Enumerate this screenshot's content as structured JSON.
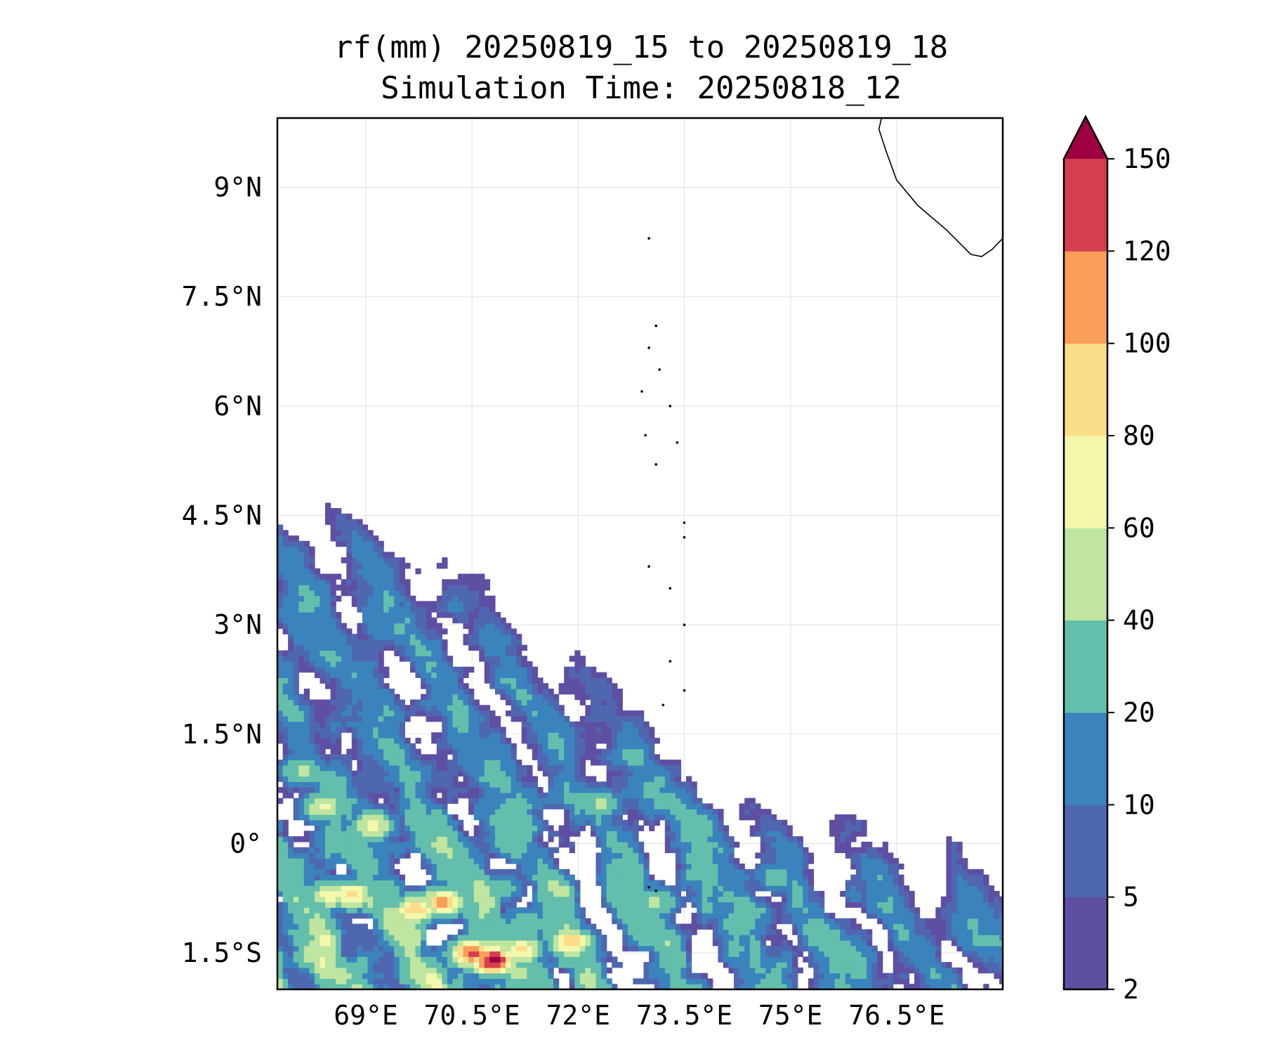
{
  "title": {
    "line1": "rf(mm) 20250819_15 to 20250819_18",
    "line2": "Simulation Time: 20250818_12"
  },
  "map": {
    "lon_range": [
      67.75,
      78.0
    ],
    "lat_range": [
      -2.0,
      9.95
    ],
    "gridlines": true,
    "x_ticks": [
      {
        "value": 69.0,
        "label": "69°E"
      },
      {
        "value": 70.5,
        "label": "70.5°E"
      },
      {
        "value": 72.0,
        "label": "72°E"
      },
      {
        "value": 73.5,
        "label": "73.5°E"
      },
      {
        "value": 75.0,
        "label": "75°E"
      },
      {
        "value": 76.5,
        "label": "76.5°E"
      }
    ],
    "y_ticks": [
      {
        "value": 9.0,
        "label": "9°N"
      },
      {
        "value": 7.5,
        "label": "7.5°N"
      },
      {
        "value": 6.0,
        "label": "6°N"
      },
      {
        "value": 4.5,
        "label": "4.5°N"
      },
      {
        "value": 3.0,
        "label": "3°N"
      },
      {
        "value": 1.5,
        "label": "1.5°N"
      },
      {
        "value": 0.0,
        "label": "0°"
      },
      {
        "value": -1.5,
        "label": "1.5°S"
      }
    ],
    "coastline_india": [
      [
        76.3,
        10.0
      ],
      [
        76.25,
        9.8
      ],
      [
        76.35,
        9.5
      ],
      [
        76.5,
        9.1
      ],
      [
        76.8,
        8.75
      ],
      [
        77.2,
        8.42
      ],
      [
        77.55,
        8.08
      ],
      [
        77.7,
        8.05
      ],
      [
        77.85,
        8.15
      ],
      [
        78.0,
        8.3
      ]
    ],
    "islands": [
      [
        73.0,
        8.3
      ],
      [
        73.1,
        7.1
      ],
      [
        73.0,
        6.8
      ],
      [
        73.15,
        6.5
      ],
      [
        72.9,
        6.2
      ],
      [
        73.3,
        6.0
      ],
      [
        72.95,
        5.6
      ],
      [
        73.4,
        5.5
      ],
      [
        73.1,
        5.2
      ],
      [
        73.5,
        4.4
      ],
      [
        73.5,
        4.2
      ],
      [
        73.0,
        3.8
      ],
      [
        73.3,
        3.5
      ],
      [
        73.5,
        3.0
      ],
      [
        73.3,
        2.5
      ],
      [
        73.5,
        2.1
      ],
      [
        73.2,
        1.9
      ],
      [
        73.0,
        -0.6
      ],
      [
        73.1,
        -0.65
      ]
    ]
  },
  "colorbar": {
    "levels": [
      2,
      5,
      10,
      20,
      40,
      60,
      80,
      100,
      120,
      150
    ],
    "colors": [
      "#5e4fa2",
      "#4f67b0",
      "#3b83bd",
      "#63bfab",
      "#bfe5a0",
      "#f3f8ad",
      "#fbdd8a",
      "#f99e59",
      "#d53e4f"
    ],
    "extend_color": "#9e0142",
    "extend": "max"
  },
  "chart_data": {
    "type": "heatmap",
    "title": "rf(mm) 20250819_15 to 20250819_18",
    "subtitle": "Simulation Time: 20250818_12",
    "xlim": [
      67.75,
      78.0
    ],
    "ylim": [
      -2.0,
      9.95
    ],
    "unit": "mm",
    "levels": [
      2,
      5,
      10,
      20,
      40,
      60,
      80,
      100,
      120,
      150
    ],
    "cells": [
      {
        "lon": 68.1,
        "lat": 1.0,
        "value": 45
      },
      {
        "lon": 68.4,
        "lat": 0.5,
        "value": 65
      },
      {
        "lon": 69.1,
        "lat": 0.25,
        "value": 70
      },
      {
        "lon": 68.8,
        "lat": -0.7,
        "value": 90
      },
      {
        "lon": 68.5,
        "lat": -0.7,
        "value": 75
      },
      {
        "lon": 69.7,
        "lat": -0.9,
        "value": 100
      },
      {
        "lon": 70.1,
        "lat": -0.8,
        "value": 110
      },
      {
        "lon": 70.5,
        "lat": -1.5,
        "value": 130
      },
      {
        "lon": 70.8,
        "lat": -1.6,
        "value": 160
      },
      {
        "lon": 71.2,
        "lat": -1.45,
        "value": 85
      },
      {
        "lon": 71.9,
        "lat": -1.35,
        "value": 100
      },
      {
        "lon": 73.1,
        "lat": -0.8,
        "value": 45
      },
      {
        "lon": 72.3,
        "lat": 0.55,
        "value": 45
      },
      {
        "lon": 74.8,
        "lat": -0.45,
        "value": 30
      },
      {
        "lon": 71.3,
        "lat": -1.1,
        "value": 40
      },
      {
        "lon": 70.9,
        "lat": -0.6,
        "value": 35
      }
    ]
  }
}
